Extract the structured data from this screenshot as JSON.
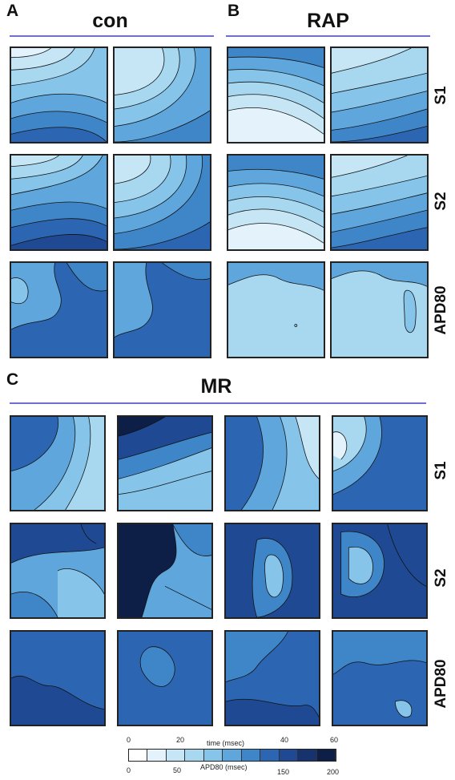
{
  "panels": {
    "A": {
      "letter": "A",
      "title": "con"
    },
    "B": {
      "letter": "B",
      "title": "RAP"
    },
    "C": {
      "letter": "C",
      "title": "MR"
    }
  },
  "row_labels": {
    "s1": "S1",
    "s2": "S2",
    "apd": "APD80"
  },
  "colorbar": {
    "time_ticks": [
      "0",
      "20",
      "40",
      "60"
    ],
    "time_label": "time (msec)",
    "apd_ticks": [
      "0",
      "50",
      "150",
      "200"
    ],
    "apd_label": "APD80 (msec)",
    "colors": [
      "#ffffff",
      "#e4f3fb",
      "#c6e6f6",
      "#a8d8f0",
      "#86c4ea",
      "#5ea6dc",
      "#3f86c9",
      "#2c65b1",
      "#1f4a93",
      "#16336e",
      "#0d1f47"
    ]
  }
}
